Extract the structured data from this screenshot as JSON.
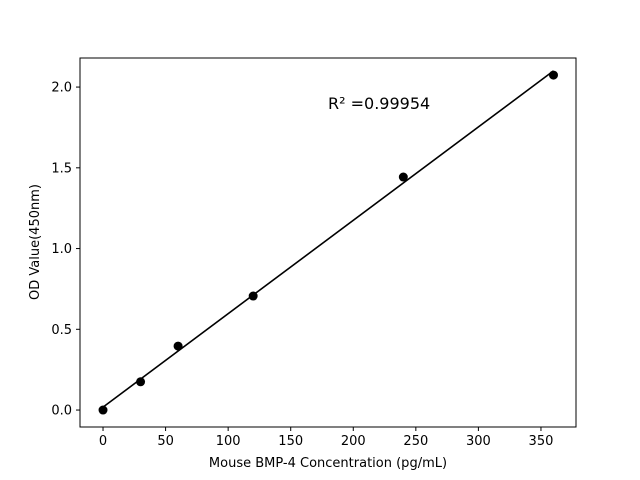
{
  "chart_data": {
    "type": "scatter",
    "title": "",
    "xlabel": "Mouse BMP-4 Concentration (pg/mL)",
    "ylabel": "OD Value(450nm)",
    "xlim": [
      -18.4,
      378
    ],
    "ylim": [
      -0.105,
      2.18
    ],
    "x_ticks": [
      0,
      50,
      100,
      150,
      200,
      250,
      300,
      350
    ],
    "x_tick_labels": [
      "0",
      "50",
      "100",
      "150",
      "200",
      "250",
      "300",
      "350"
    ],
    "y_ticks": [
      0,
      0.5,
      1.0,
      1.5,
      2.0
    ],
    "y_tick_labels": [
      "0.0",
      "0.5",
      "1.0",
      "1.5",
      "2.0"
    ],
    "grid": false,
    "series": [
      {
        "x": [
          0,
          30,
          60,
          120,
          240,
          360
        ],
        "y": [
          0.0,
          0.175,
          0.396,
          0.706,
          1.443,
          2.074
        ],
        "marker": "circle",
        "color": "#000000",
        "fit_line": "linear"
      }
    ],
    "annotation": "R² =0.99954"
  }
}
